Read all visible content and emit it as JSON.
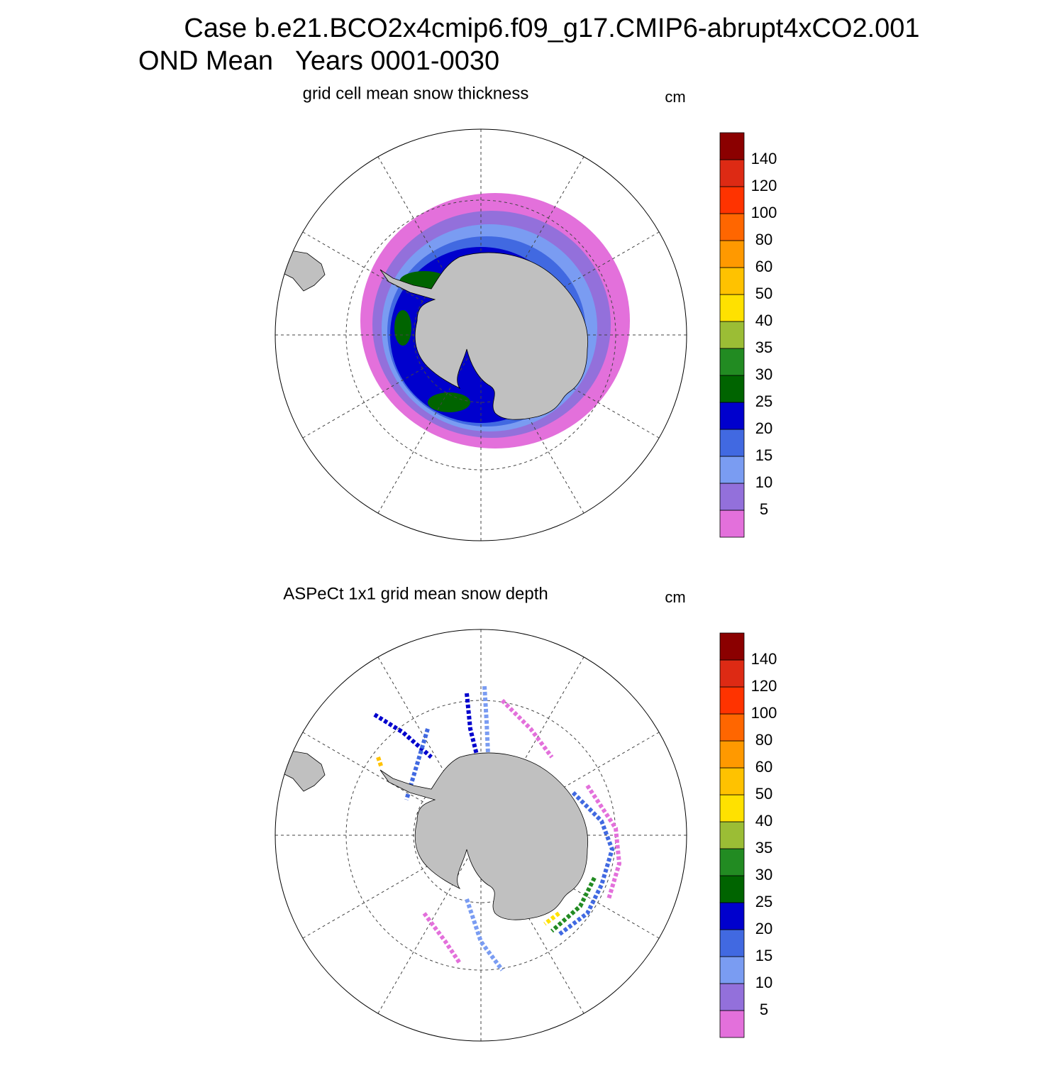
{
  "header": {
    "title": "Case b.e21.BCO2x4cmip6.f09_g17.CMIP6-abrupt4xCO2.001",
    "subtitle": "OND Mean   Years 0001-0030"
  },
  "panels": [
    {
      "title": "grid cell mean snow thickness",
      "units": "cm"
    },
    {
      "title": "ASPeCt 1x1 grid mean snow depth",
      "units": "cm"
    }
  ],
  "colorbar": {
    "levels": [
      5,
      10,
      15,
      20,
      25,
      30,
      35,
      40,
      50,
      60,
      80,
      100,
      120,
      140
    ],
    "colors": [
      "#e370db",
      "#9370db",
      "#7a9cf2",
      "#4169e1",
      "#0000cd",
      "#006400",
      "#228b22",
      "#9bbd35",
      "#ffe100",
      "#ffc200",
      "#ff9900",
      "#ff6600",
      "#ff3300",
      "#dd2a14",
      "#8b0000"
    ]
  }
}
